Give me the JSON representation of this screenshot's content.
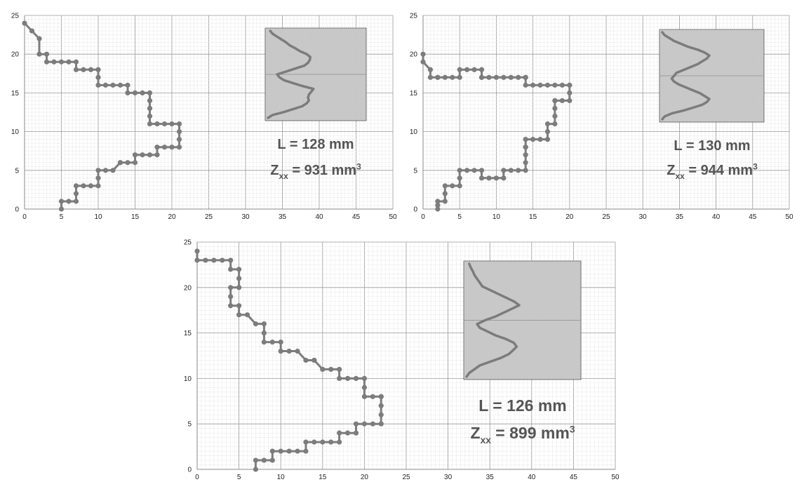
{
  "colors": {
    "grid_minor": "#d8d8d8",
    "grid_major": "#9a9a9a",
    "axis": "#8a8a8a",
    "series": "#7c7c7c",
    "inset_fill": "#c9c9c9",
    "annotation_text": "#555555"
  },
  "chart_data": [
    {
      "type": "line",
      "title": "",
      "xlabel": "",
      "ylabel": "",
      "xlim": [
        0,
        50
      ],
      "ylim": [
        0,
        25
      ],
      "x_ticks": [
        "0",
        "5",
        "10",
        "15",
        "20",
        "25",
        "30",
        "35",
        "40",
        "45",
        "50"
      ],
      "y_ticks": [
        "0",
        "5",
        "10",
        "15",
        "20",
        "25"
      ],
      "grid": true,
      "legend": "none",
      "annotation": {
        "length_label": "L = 128 mm",
        "z_symbol": "Z",
        "z_subscript": "xx",
        "z_value": "= 931 mm",
        "z_unit_power": "3"
      },
      "series": [
        {
          "x": [
            5,
            5,
            6,
            7,
            7,
            7,
            8,
            9,
            10,
            10,
            10,
            11,
            12,
            13,
            13,
            14,
            15,
            15,
            16,
            17,
            18,
            18,
            19,
            20,
            21,
            21,
            21,
            21,
            20,
            19,
            18,
            17,
            17,
            17,
            17,
            17,
            16,
            15,
            14,
            14,
            13,
            12,
            11,
            10,
            10,
            10,
            9,
            8,
            7,
            7,
            6,
            5,
            4,
            3,
            3,
            2,
            2,
            1,
            0
          ],
          "y": [
            0,
            1,
            1,
            1,
            2,
            3,
            3,
            3,
            3,
            4,
            5,
            5,
            5,
            6,
            6,
            6,
            6,
            7,
            7,
            7,
            7,
            8,
            8,
            8,
            8,
            9,
            10,
            11,
            11,
            11,
            11,
            11,
            12,
            13,
            14,
            15,
            15,
            15,
            15,
            16,
            16,
            16,
            16,
            16,
            17,
            18,
            18,
            18,
            18,
            19,
            19,
            19,
            19,
            19,
            20,
            20,
            22,
            23,
            24
          ]
        }
      ],
      "inset": {
        "type": "outline",
        "y": [
          0,
          0.4,
          0.8,
          1.2,
          1.6,
          2.0,
          2.4,
          2.8,
          3.2,
          3.6,
          4.0,
          4.4,
          4.8,
          5.2,
          5.6,
          6.0,
          6.4,
          6.8,
          7.2,
          7.6,
          8.0,
          8.4,
          8.8,
          9.2,
          9.6,
          10.0,
          10.4,
          10.8,
          11.2,
          11.6,
          12.0
        ],
        "x": [
          0.0,
          0.1,
          0.35,
          0.55,
          0.75,
          0.85,
          0.9,
          0.88,
          0.9,
          0.95,
          1.0,
          0.75,
          0.55,
          0.35,
          0.25,
          0.2,
          0.4,
          0.6,
          0.8,
          0.88,
          0.92,
          0.93,
          0.85,
          0.7,
          0.6,
          0.48,
          0.4,
          0.3,
          0.2,
          0.1,
          0.05
        ]
      }
    },
    {
      "type": "line",
      "title": "",
      "xlabel": "",
      "ylabel": "",
      "xlim": [
        0,
        50
      ],
      "ylim": [
        0,
        25
      ],
      "x_ticks": [
        "0",
        "5",
        "10",
        "15",
        "20",
        "25",
        "30",
        "35",
        "40",
        "45",
        "50"
      ],
      "y_ticks": [
        "0",
        "5",
        "10",
        "15",
        "20",
        "25"
      ],
      "grid": true,
      "legend": "none",
      "annotation": {
        "length_label": "L = 130 mm",
        "z_symbol": "Z",
        "z_subscript": "xx",
        "z_value": "= 944 mm",
        "z_unit_power": "3"
      },
      "series": [
        {
          "x": [
            2,
            2,
            2,
            3,
            3,
            3,
            4,
            5,
            5,
            5,
            6,
            7,
            8,
            8,
            9,
            10,
            11,
            11,
            12,
            13,
            14,
            14,
            14,
            14,
            14,
            14,
            15,
            16,
            17,
            17,
            17,
            18,
            18,
            18,
            18,
            18,
            18,
            19,
            20,
            20,
            20,
            20,
            19,
            18,
            17,
            16,
            15,
            14,
            14,
            14,
            13,
            12,
            11,
            10,
            9,
            8,
            8,
            8,
            7,
            6,
            5,
            5,
            4,
            3,
            2,
            2,
            1,
            1,
            0,
            0
          ],
          "y": [
            0,
            0.5,
            1,
            1,
            2,
            3,
            3,
            3,
            4,
            5,
            5,
            5,
            5,
            4,
            4,
            4,
            4,
            5,
            5,
            5,
            5,
            6,
            7,
            8,
            8,
            9,
            9,
            9,
            9,
            10,
            11,
            11,
            12,
            13,
            14,
            14,
            14,
            14,
            14,
            15,
            16,
            16,
            16,
            16,
            16,
            16,
            16,
            16,
            17,
            17,
            17,
            17,
            17,
            17,
            17,
            17,
            17,
            18,
            18,
            18,
            18,
            17,
            17,
            17,
            17,
            17,
            17,
            18,
            19,
            20
          ]
        }
      ],
      "inset": {
        "type": "outline",
        "y": [
          0,
          0.4,
          0.8,
          1.2,
          1.6,
          2.0,
          2.4,
          2.8,
          3.2,
          3.6,
          4.0,
          4.4,
          4.8,
          5.2,
          5.6,
          6.0,
          6.4,
          6.8,
          7.2,
          7.6,
          8.0,
          8.4,
          8.8,
          9.2,
          9.6,
          10.0,
          10.4,
          10.8,
          11.2,
          11.6,
          12.0
        ],
        "x": [
          0.0,
          0.05,
          0.2,
          0.45,
          0.65,
          0.85,
          0.95,
          1.0,
          0.9,
          0.8,
          0.65,
          0.5,
          0.35,
          0.25,
          0.2,
          0.25,
          0.3,
          0.45,
          0.6,
          0.75,
          0.85,
          0.95,
          1.0,
          0.9,
          0.75,
          0.55,
          0.4,
          0.25,
          0.15,
          0.05,
          0.0
        ]
      }
    },
    {
      "type": "line",
      "title": "",
      "xlabel": "",
      "ylabel": "",
      "xlim": [
        0,
        50
      ],
      "ylim": [
        0,
        25
      ],
      "x_ticks": [
        "0",
        "5",
        "10",
        "15",
        "20",
        "25",
        "30",
        "35",
        "40",
        "45",
        "50"
      ],
      "y_ticks": [
        "0",
        "5",
        "10",
        "15",
        "20",
        "25"
      ],
      "grid": true,
      "legend": "none",
      "annotation": {
        "length_label": "L = 126 mm",
        "z_symbol": "Z",
        "z_subscript": "xx",
        "z_value": "= 899 mm",
        "z_unit_power": "3"
      },
      "series": [
        {
          "x": [
            7,
            7,
            8,
            9,
            9,
            10,
            11,
            12,
            13,
            13,
            14,
            15,
            16,
            17,
            17,
            18,
            19,
            19,
            20,
            21,
            22,
            22,
            22,
            22,
            22,
            21,
            20,
            20,
            20,
            19,
            18,
            17,
            17,
            16,
            15,
            14,
            14,
            13,
            12,
            11,
            10,
            10,
            9,
            8,
            8,
            8,
            7,
            6,
            5,
            5,
            4,
            4,
            4,
            5,
            5,
            5,
            4,
            4,
            3,
            2,
            1,
            0,
            0
          ],
          "y": [
            0,
            1,
            1,
            1,
            2,
            2,
            2,
            2,
            2,
            3,
            3,
            3,
            3,
            3,
            4,
            4,
            4,
            5,
            5,
            5,
            5,
            6,
            7,
            8,
            8,
            8,
            8,
            9,
            10,
            10,
            10,
            10,
            11,
            11,
            11,
            12,
            12,
            12,
            13,
            13,
            13,
            14,
            14,
            14,
            15,
            16,
            16,
            17,
            17,
            18,
            18,
            19,
            20,
            20,
            21,
            22,
            22,
            23,
            23,
            23,
            23,
            23,
            24
          ]
        }
      ],
      "inset": {
        "type": "outline",
        "y": [
          0,
          0.4,
          0.8,
          1.2,
          1.6,
          2.0,
          2.4,
          2.8,
          3.2,
          3.6,
          4.0,
          4.4,
          4.8,
          5.2,
          5.6,
          6.0,
          6.4,
          6.8,
          7.2,
          7.6,
          8.0,
          8.4,
          8.8,
          9.2,
          9.6,
          10.0,
          10.4,
          10.8,
          11.2,
          11.6,
          12.0
        ],
        "x": [
          0.0,
          0.05,
          0.15,
          0.25,
          0.45,
          0.65,
          0.8,
          0.88,
          0.95,
          0.9,
          0.75,
          0.55,
          0.4,
          0.25,
          0.2,
          0.35,
          0.55,
          0.7,
          0.85,
          1.0,
          0.9,
          0.75,
          0.6,
          0.45,
          0.3,
          0.25,
          0.2,
          0.15,
          0.12,
          0.08,
          0.05
        ]
      }
    }
  ]
}
